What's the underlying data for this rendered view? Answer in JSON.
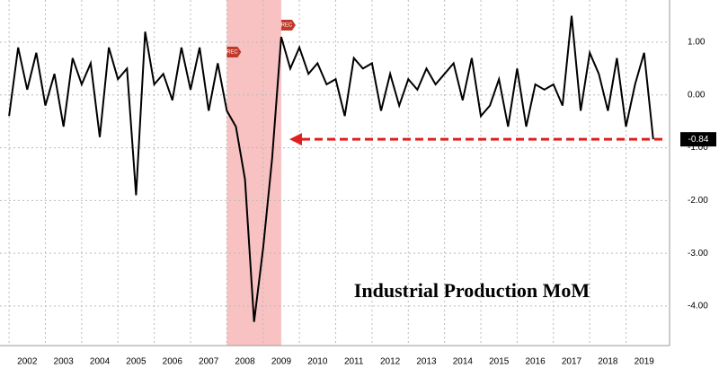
{
  "chart_data": {
    "type": "line",
    "title": "Industrial Production MoM",
    "x": [
      2002.0,
      2002.25,
      2002.5,
      2002.75,
      2003.0,
      2003.25,
      2003.5,
      2003.75,
      2004.0,
      2004.25,
      2004.5,
      2004.75,
      2005.0,
      2005.25,
      2005.5,
      2005.75,
      2006.0,
      2006.25,
      2006.5,
      2006.75,
      2007.0,
      2007.25,
      2007.5,
      2007.75,
      2008.0,
      2008.25,
      2008.5,
      2008.75,
      2009.0,
      2009.25,
      2009.5,
      2009.75,
      2010.0,
      2010.25,
      2010.5,
      2010.75,
      2011.0,
      2011.25,
      2011.5,
      2011.75,
      2012.0,
      2012.25,
      2012.5,
      2012.75,
      2013.0,
      2013.25,
      2013.5,
      2013.75,
      2014.0,
      2014.25,
      2014.5,
      2014.75,
      2015.0,
      2015.25,
      2015.5,
      2015.75,
      2016.0,
      2016.25,
      2016.5,
      2016.75,
      2017.0,
      2017.25,
      2017.5,
      2017.75,
      2018.0,
      2018.25,
      2018.5,
      2018.75,
      2019.0,
      2019.25,
      2019.5,
      2019.75
    ],
    "series": [
      {
        "name": "Industrial Production MoM",
        "color": "#000000",
        "values": [
          -0.4,
          0.9,
          0.1,
          0.8,
          -0.2,
          0.4,
          -0.6,
          0.7,
          0.2,
          0.6,
          -0.8,
          0.9,
          0.3,
          0.5,
          -1.9,
          1.2,
          0.2,
          0.4,
          -0.1,
          0.9,
          0.1,
          0.9,
          -0.3,
          0.6,
          -0.3,
          -0.6,
          -1.6,
          -4.3,
          -2.9,
          -1.2,
          1.1,
          0.5,
          0.9,
          0.4,
          0.6,
          0.2,
          0.3,
          -0.4,
          0.7,
          0.5,
          0.6,
          -0.3,
          0.4,
          -0.2,
          0.3,
          0.1,
          0.5,
          0.2,
          0.4,
          0.6,
          -0.1,
          0.7,
          -0.4,
          -0.2,
          0.3,
          -0.6,
          0.5,
          -0.6,
          0.2,
          0.1,
          0.2,
          -0.2,
          1.5,
          -0.3,
          0.8,
          0.4,
          -0.3,
          0.7,
          -0.6,
          0.2,
          0.8,
          -0.84
        ]
      }
    ],
    "last_value_label": "-0.84",
    "recession": {
      "label": "REC",
      "start": 2008.0,
      "end": 2009.5
    },
    "xlim": [
      2001.75,
      2020.2
    ],
    "xticks": [
      2002,
      2003,
      2004,
      2005,
      2006,
      2007,
      2008,
      2009,
      2010,
      2011,
      2012,
      2013,
      2014,
      2015,
      2016,
      2017,
      2018,
      2019
    ],
    "ylim": [
      -4.75,
      1.8
    ],
    "yticks": [
      {
        "value": -4,
        "label": "-4.00"
      },
      {
        "value": -3,
        "label": "-3.00"
      },
      {
        "value": -2,
        "label": "-2.00"
      },
      {
        "value": -1,
        "label": "-1.00"
      },
      {
        "value": 0,
        "label": "0.00"
      },
      {
        "value": 1,
        "label": "1.00"
      }
    ],
    "grid": true
  }
}
